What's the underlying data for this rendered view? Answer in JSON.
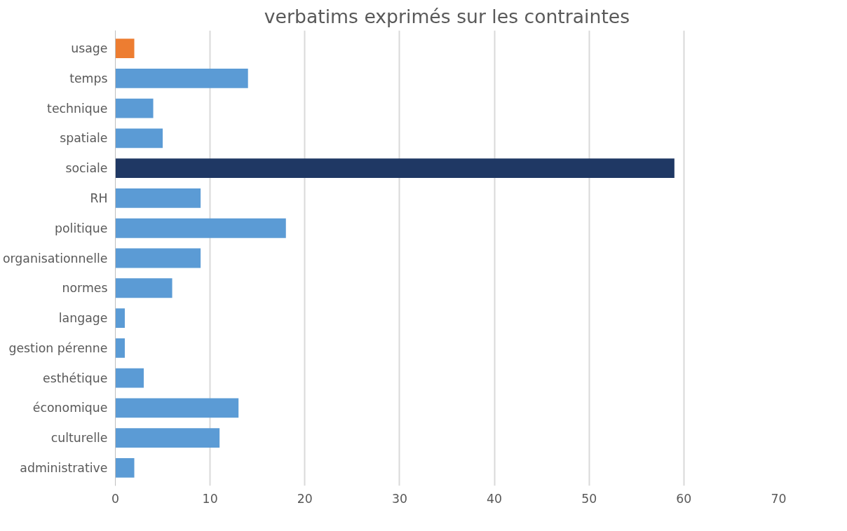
{
  "chart_data": {
    "type": "bar",
    "orientation": "horizontal",
    "title": "verbatims exprimés sur les contraintes",
    "categories": [
      "usage",
      "temps",
      "technique",
      "spatiale",
      "sociale",
      "RH",
      "politique",
      "organisationnelle",
      "normes",
      "langage",
      "gestion pérenne",
      "esthétique",
      "économique",
      "culturelle",
      "administrative"
    ],
    "values": [
      2,
      14,
      4,
      5,
      59,
      9,
      18,
      9,
      6,
      1,
      1,
      3,
      13,
      11,
      2
    ],
    "colors": [
      "#ed7d31",
      "#5b9bd5",
      "#5b9bd5",
      "#5b9bd5",
      "#1f3864",
      "#5b9bd5",
      "#5b9bd5",
      "#5b9bd5",
      "#5b9bd5",
      "#5b9bd5",
      "#5b9bd5",
      "#5b9bd5",
      "#5b9bd5",
      "#5b9bd5",
      "#5b9bd5"
    ],
    "xlim": [
      0,
      70
    ],
    "xticks": [
      0,
      10,
      20,
      30,
      40,
      50,
      60,
      70
    ],
    "grid": "x"
  }
}
